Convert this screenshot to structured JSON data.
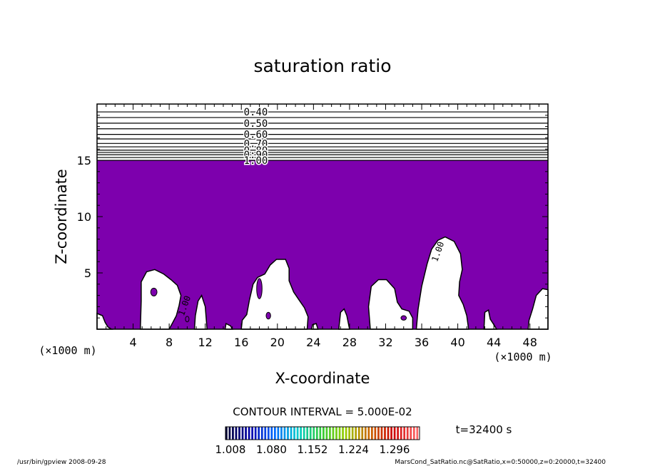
{
  "chart_data": {
    "type": "contour",
    "title": "saturation ratio",
    "xlabel": "X-coordinate",
    "ylabel": "Z-coordinate",
    "x_unit": "(×1000 m)",
    "xlim": [
      0,
      50
    ],
    "ylim": [
      0,
      20
    ],
    "x_ticks": [
      4,
      8,
      12,
      16,
      20,
      24,
      28,
      32,
      36,
      40,
      44,
      48
    ],
    "y_ticks": [
      5,
      10,
      15
    ],
    "fill_color": "#7d00ad",
    "fill_threshold": 1.0,
    "upper_contours": [
      {
        "level": 0.4,
        "z": 19.3
      },
      {
        "level": 0.45,
        "z": 18.8
      },
      {
        "level": 0.5,
        "z": 18.3
      },
      {
        "level": 0.55,
        "z": 17.8
      },
      {
        "level": 0.6,
        "z": 17.3
      },
      {
        "level": 0.65,
        "z": 16.9
      },
      {
        "level": 0.7,
        "z": 16.5
      },
      {
        "level": 0.75,
        "z": 16.2
      },
      {
        "level": 0.8,
        "z": 15.9
      },
      {
        "level": 0.85,
        "z": 15.7
      },
      {
        "level": 0.9,
        "z": 15.5
      },
      {
        "level": 0.95,
        "z": 15.25
      },
      {
        "level": 1.0,
        "z": 15.0
      }
    ],
    "contour_labels": [
      "0.40",
      "0.50",
      "0.60",
      "0.70",
      "0.80",
      "0.90",
      "1.00"
    ],
    "inline_labels": [
      "1.00",
      "1.00"
    ],
    "contour_interval_text": "CONTOUR INTERVAL = 5.000E-02",
    "colorbar": {
      "tick_labels": [
        "1.008",
        "1.080",
        "1.152",
        "1.224",
        "1.296"
      ],
      "colors": [
        "#000033",
        "#0000aa",
        "#0066ff",
        "#00cccc",
        "#33cc33",
        "#99cc00",
        "#cc6600",
        "#cc0000",
        "#ff6666"
      ]
    },
    "time_label": "t=32400 s"
  },
  "footer": {
    "left": "/usr/bin/gpview   2008-09-28",
    "right": "MarsCond_SatRatio.nc@SatRatio,x=0:50000,z=0:20000,t=32400"
  }
}
